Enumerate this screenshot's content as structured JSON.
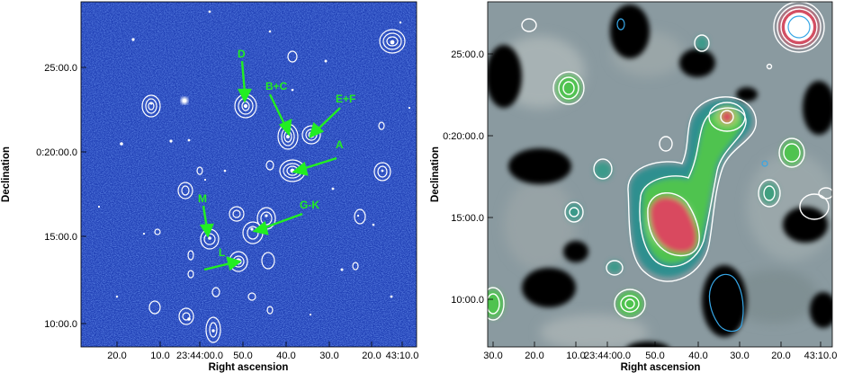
{
  "left_panel": {
    "x_ticks": [
      "20.0",
      "10.0",
      "23:44:00.0",
      "50.0",
      "40.0",
      "30.0",
      "20.0",
      "43:10.0"
    ],
    "y_ticks": [
      "25:00.0",
      "0:20:00.0",
      "15:00.0",
      "10:00.0"
    ],
    "x_label": "Right ascension",
    "y_label": "Declination",
    "markers": [
      "D",
      "B+C",
      "E+F",
      "A",
      "G-K",
      "M",
      "L"
    ]
  },
  "right_panel": {
    "x_ticks": [
      "30.0",
      "20.0",
      "10.0",
      "23:44:00.0",
      "50.0",
      "40.0",
      "30.0",
      "20.0",
      "43:10.0"
    ],
    "y_ticks": [
      "25:00.0",
      "0:20:00.0",
      "15:00.0",
      "10:00.0"
    ],
    "x_label": "Right ascension",
    "y_label": "Declination"
  },
  "colors": {
    "optical_bg": "#1f3fb4",
    "contour_white": "#ffffff",
    "marker_green": "#22ee22",
    "map_grey": "#8a9aa0",
    "map_teal": "#2f8f8f",
    "map_green": "#4fc34f",
    "map_red": "#d9485f",
    "contour_blue": "#36a6e6"
  }
}
